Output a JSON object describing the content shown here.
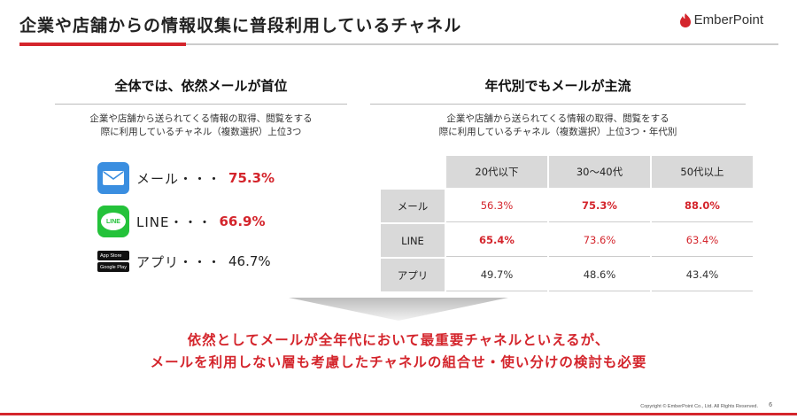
{
  "header": {
    "title": "企業や店舗からの情報収集に普段利用しているチャネル",
    "logo_text": "EmberPoint",
    "accent_color": "#d4252c"
  },
  "left": {
    "heading": "全体では、依然メールが首位",
    "desc_line1": "企業や店舗から送られてくる情報の取得、閲覧をする",
    "desc_line2": "際に利用しているチャネル（複数選択）上位3つ",
    "items": [
      {
        "icon": "mail-icon",
        "label": "メール・・・",
        "value": "75.3%"
      },
      {
        "icon": "line-icon",
        "label": "LINE・・・",
        "value": "66.9%",
        "icon_text": "LINE"
      },
      {
        "icon": "app-store-icon",
        "label": "アプリ・・・",
        "value": "46.7%",
        "badge1": "App Store",
        "badge2": "Google Play"
      }
    ]
  },
  "right": {
    "heading": "年代別でもメールが主流",
    "desc_line1": "企業や店舗から送られてくる情報の取得、閲覧をする",
    "desc_line2": "際に利用しているチャネル（複数選択）上位3つ・年代別",
    "columns": [
      "20代以下",
      "30～40代",
      "50代以上"
    ],
    "rows": [
      {
        "label": "メール",
        "values": [
          "56.3%",
          "75.3%",
          "88.0%"
        ]
      },
      {
        "label": "LINE",
        "values": [
          "65.4%",
          "73.6%",
          "63.4%"
        ]
      },
      {
        "label": "アプリ",
        "values": [
          "49.7%",
          "48.6%",
          "43.4%"
        ]
      }
    ]
  },
  "conclusion": {
    "line1": "依然としてメールが全年代において最重要チャネルといえるが、",
    "line2": "メールを利用しない層も考慮したチャネルの組合せ・使い分けの検討も必要"
  },
  "footer": {
    "copyright": "Copyright © EmberPoint Co., Ltd. All Rights Reserved.",
    "page": "6"
  }
}
